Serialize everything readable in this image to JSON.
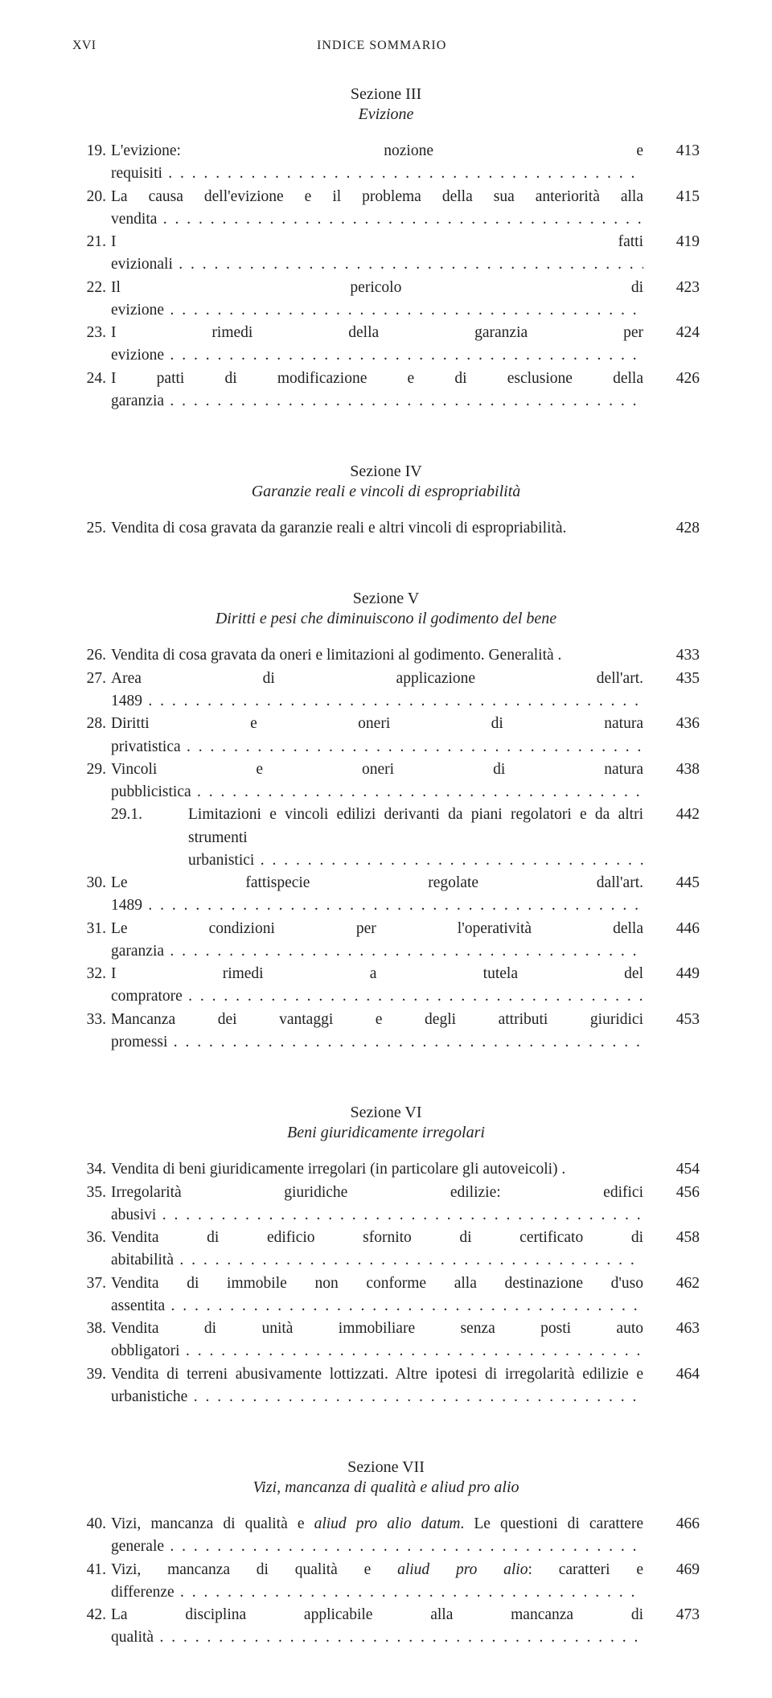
{
  "running_head": {
    "left": "XVI",
    "center": "INDICE SOMMARIO"
  },
  "sections": [
    {
      "heading": "Sezione III",
      "subtitle": "Evizione",
      "large_gap": false,
      "entries": [
        {
          "n": "19.",
          "text": "L'evizione: nozione e requisiti",
          "page": "413"
        },
        {
          "n": "20.",
          "text": "La causa dell'evizione e il problema della sua anteriorità alla vendita",
          "page": "415"
        },
        {
          "n": "21.",
          "text": "I fatti evizionali",
          "page": "419"
        },
        {
          "n": "22.",
          "text": "Il pericolo di evizione",
          "page": "423"
        },
        {
          "n": "23.",
          "text": "I rimedi della garanzia per evizione",
          "page": "424"
        },
        {
          "n": "24.",
          "text": "I patti di modificazione e di esclusione della garanzia",
          "page": "426"
        }
      ]
    },
    {
      "heading": "Sezione IV",
      "subtitle": "Garanzie reali e vincoli di espropriabilità",
      "large_gap": true,
      "entries": [
        {
          "n": "25.",
          "text": "Vendita di cosa gravata da garanzie reali e altri vincoli di espropriabilità.",
          "page": "428",
          "no_dots": true
        }
      ]
    },
    {
      "heading": "Sezione V",
      "subtitle": "Diritti e pesi che diminuiscono il godimento del bene",
      "large_gap": true,
      "entries": [
        {
          "n": "26.",
          "text": "Vendita di cosa gravata da oneri e limitazioni al godimento. Generalità .",
          "page": "433",
          "no_dots": true
        },
        {
          "n": "27.",
          "text": "Area di applicazione dell'art. 1489",
          "page": "435"
        },
        {
          "n": "28.",
          "text": "Diritti e oneri di natura privatistica",
          "page": "436"
        },
        {
          "n": "29.",
          "text": "Vincoli e oneri di natura pubblicistica",
          "page": "438"
        },
        {
          "n": "29.1.",
          "text": "Limitazioni e vincoli edilizi derivanti da piani regolatori e da altri strumenti urbanistici",
          "page": "442",
          "sub": true
        },
        {
          "n": "30.",
          "text": "Le fattispecie regolate dall'art. 1489",
          "page": "445"
        },
        {
          "n": "31.",
          "text": "Le condizioni per l'operatività della garanzia",
          "page": "446"
        },
        {
          "n": "32.",
          "text": "I rimedi a tutela del compratore",
          "page": "449"
        },
        {
          "n": "33.",
          "text": "Mancanza dei vantaggi e degli attributi giuridici promessi",
          "page": "453"
        }
      ]
    },
    {
      "heading": "Sezione VI",
      "subtitle": "Beni giuridicamente irregolari",
      "large_gap": true,
      "entries": [
        {
          "n": "34.",
          "text": "Vendita di beni giuridicamente irregolari (in particolare gli autoveicoli) .",
          "page": "454",
          "no_dots": true
        },
        {
          "n": "35.",
          "text": "Irregolarità giuridiche edilizie: edifici abusivi",
          "page": "456"
        },
        {
          "n": "36.",
          "text": "Vendita di edificio sfornito di certificato di abitabilità",
          "page": "458"
        },
        {
          "n": "37.",
          "text": "Vendita di immobile non conforme alla destinazione d'uso assentita",
          "page": "462"
        },
        {
          "n": "38.",
          "text": "Vendita di unità immobiliare senza posti auto obbligatori",
          "page": "463"
        },
        {
          "n": "39.",
          "text": "Vendita di terreni abusivamente lottizzati. Altre ipotesi di irregolarità edilizie e urbanistiche",
          "page": "464"
        }
      ]
    },
    {
      "heading": "Sezione VII",
      "subtitle": "Vizi, mancanza di qualità e aliud pro alio",
      "large_gap": true,
      "entries": [
        {
          "n": "40.",
          "html": "Vizi, mancanza di qualità e <em>aliud pro alio datum</em>. Le questioni di carattere generale",
          "page": "466"
        },
        {
          "n": "41.",
          "html": "Vizi, mancanza di qualità e <em>aliud pro alio</em>: caratteri e differenze",
          "page": "469"
        },
        {
          "n": "42.",
          "text": "La disciplina applicabile alla mancanza di qualità",
          "page": "473"
        }
      ]
    }
  ]
}
